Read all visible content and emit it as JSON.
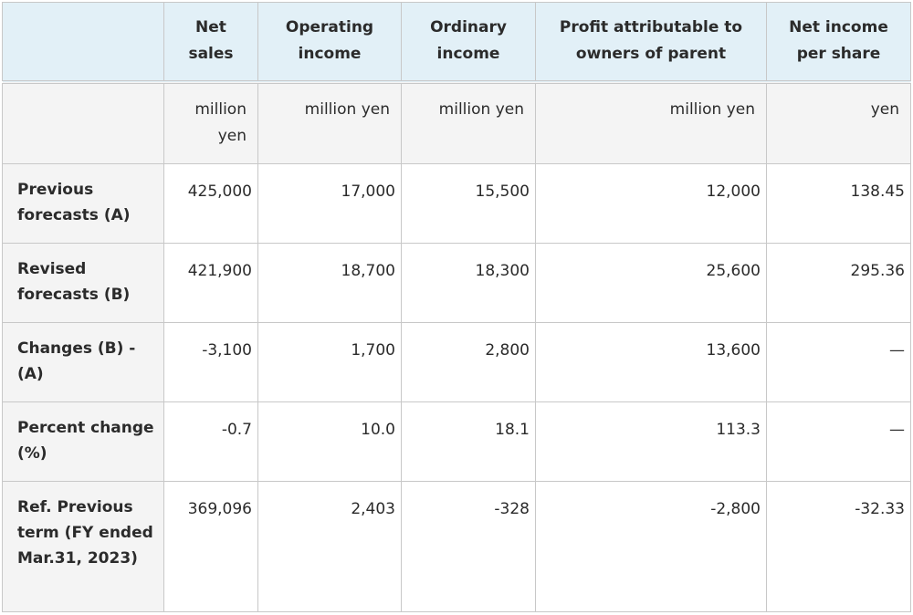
{
  "columns": [
    "",
    "Net sales",
    "Operating income",
    "Ordinary income",
    "Profit attributable to owners of parent",
    "Net income per share"
  ],
  "units": [
    "",
    "million yen",
    "million yen",
    "million yen",
    "million yen",
    "yen"
  ],
  "rows": [
    {
      "label": "Previous forecasts (A)",
      "values": [
        "425,000",
        "17,000",
        "15,500",
        "12,000",
        "138.45"
      ]
    },
    {
      "label": "Revised forecasts (B)",
      "values": [
        "421,900",
        "18,700",
        "18,300",
        "25,600",
        "295.36"
      ]
    },
    {
      "label": "Changes (B) - (A)",
      "values": [
        "-3,100",
        "1,700",
        "2,800",
        "13,600",
        "—"
      ]
    },
    {
      "label": "Percent change (%)",
      "values": [
        "-0.7",
        "10.0",
        "18.1",
        "113.3",
        "—"
      ]
    },
    {
      "label": "Ref. Previous term (FY ended Mar.31, 2023)",
      "values": [
        "369,096",
        "2,403",
        "-328",
        "-2,800",
        "-32.33"
      ]
    }
  ]
}
